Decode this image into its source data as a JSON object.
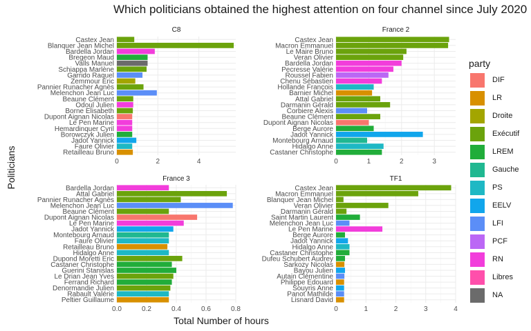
{
  "chart": {
    "title": "Which politicians obtained the highest attention on four channel since July 2020",
    "xlabel": "Total Number of hours",
    "ylabel": "Politicians"
  },
  "legend": {
    "title": "party",
    "items": [
      {
        "label": "DIF",
        "color": "#F8766D"
      },
      {
        "label": "LR",
        "color": "#D89000"
      },
      {
        "label": "Droite",
        "color": "#A3A500"
      },
      {
        "label": "Exécutif",
        "color": "#6BA30C"
      },
      {
        "label": "LREM",
        "color": "#21AD3A"
      },
      {
        "label": "Gauche",
        "color": "#20B891"
      },
      {
        "label": "PS",
        "color": "#1EB8C4"
      },
      {
        "label": "EELV",
        "color": "#11A6EC"
      },
      {
        "label": "LFI",
        "color": "#5B8EF7"
      },
      {
        "label": "PCF",
        "color": "#BB67F5"
      },
      {
        "label": "RN",
        "color": "#F23DDB"
      },
      {
        "label": "Libres",
        "color": "#FF4FAB"
      },
      {
        "label": "NA",
        "color": "#6B6B6B"
      }
    ]
  },
  "chart_data": [
    {
      "type": "bar",
      "orientation": "horizontal",
      "title": "C8",
      "xlim": [
        0,
        5.8
      ],
      "xticks": [
        0,
        2,
        4
      ],
      "bars": [
        {
          "name": "Castex Jean",
          "value": 0.85,
          "party": "Exécutif"
        },
        {
          "name": "Blanquer Jean Michel",
          "value": 5.7,
          "party": "Exécutif"
        },
        {
          "name": "Bardella Jordan",
          "value": 1.85,
          "party": "RN"
        },
        {
          "name": "Bregeon Maud",
          "value": 1.5,
          "party": "LREM"
        },
        {
          "name": "Valls Manuel",
          "value": 1.5,
          "party": "NA"
        },
        {
          "name": "Schiappa Marlène",
          "value": 1.45,
          "party": "Exécutif"
        },
        {
          "name": "Garrido Raquel",
          "value": 1.25,
          "party": "LFI"
        },
        {
          "name": "Zemmour Eric",
          "value": 0.9,
          "party": "Droite"
        },
        {
          "name": "Pannier Runacher Agnès",
          "value": 1.3,
          "party": "Exécutif"
        },
        {
          "name": "Melenchon Jean Luc",
          "value": 1.95,
          "party": "LFI"
        },
        {
          "name": "Beaune Clément",
          "value": 0.8,
          "party": "Exécutif"
        },
        {
          "name": "Odoul Julien",
          "value": 0.8,
          "party": "RN"
        },
        {
          "name": "Borne Elisabeth",
          "value": 0.78,
          "party": "Exécutif"
        },
        {
          "name": "Dupont Aignan Nicolas",
          "value": 0.75,
          "party": "DIF"
        },
        {
          "name": "Le Pen Marine",
          "value": 0.75,
          "party": "RN"
        },
        {
          "name": "Hemardinquer Cyril",
          "value": 0.75,
          "party": "RN"
        },
        {
          "name": "Borowczyk Julien",
          "value": 0.75,
          "party": "LREM"
        },
        {
          "name": "Jadot Yannick",
          "value": 0.95,
          "party": "EELV"
        },
        {
          "name": "Faure Olivier",
          "value": 0.75,
          "party": "PS"
        },
        {
          "name": "Retailleau Bruno",
          "value": 0.78,
          "party": "LR"
        }
      ]
    },
    {
      "type": "bar",
      "orientation": "horizontal",
      "title": "France 2",
      "xlim": [
        0,
        3.65
      ],
      "xticks": [
        0,
        1,
        2,
        3
      ],
      "bars": [
        {
          "name": "Castex Jean",
          "value": 3.45,
          "party": "Exécutif"
        },
        {
          "name": "Macron Emmanuel",
          "value": 3.42,
          "party": "Exécutif"
        },
        {
          "name": "Le Maire Bruno",
          "value": 2.15,
          "party": "Exécutif"
        },
        {
          "name": "Veran Olivier",
          "value": 2.05,
          "party": "Exécutif"
        },
        {
          "name": "Bardella Jordan",
          "value": 2.0,
          "party": "RN"
        },
        {
          "name": "Pecresse Valérie",
          "value": 1.75,
          "party": "RN"
        },
        {
          "name": "Roussel Fabien",
          "value": 1.6,
          "party": "PCF"
        },
        {
          "name": "Chenu Sébastien",
          "value": 1.4,
          "party": "RN"
        },
        {
          "name": "Hollande François",
          "value": 1.15,
          "party": "PS"
        },
        {
          "name": "Barnier Michel",
          "value": 1.1,
          "party": "LR"
        },
        {
          "name": "Attal Gabriel",
          "value": 1.35,
          "party": "Exécutif"
        },
        {
          "name": "Darmanin Gérald",
          "value": 1.65,
          "party": "Exécutif"
        },
        {
          "name": "Corbiere Alexis",
          "value": 0.95,
          "party": "LFI"
        },
        {
          "name": "Beaune Clément",
          "value": 1.35,
          "party": "Exécutif"
        },
        {
          "name": "Dupont Aignan Nicolas",
          "value": 1.0,
          "party": "DIF"
        },
        {
          "name": "Berge Aurore",
          "value": 1.15,
          "party": "LREM"
        },
        {
          "name": "Jadot Yannick",
          "value": 2.65,
          "party": "EELV"
        },
        {
          "name": "Montebourg Arnaud",
          "value": 0.95,
          "party": "Gauche"
        },
        {
          "name": "Hidalgo Anne",
          "value": 1.45,
          "party": "PS"
        },
        {
          "name": "Castaner Christophe",
          "value": 1.4,
          "party": "LREM"
        }
      ]
    },
    {
      "type": "bar",
      "orientation": "horizontal",
      "title": "France 3",
      "xlim": [
        0,
        0.8
      ],
      "xticks": [
        0.0,
        0.2,
        0.4,
        0.6,
        0.8
      ],
      "bars": [
        {
          "name": "Bardella Jordan",
          "value": 0.35,
          "party": "RN"
        },
        {
          "name": "Attal Gabriel",
          "value": 0.74,
          "party": "Exécutif"
        },
        {
          "name": "Pannier Runacher Agnès",
          "value": 0.43,
          "party": "Exécutif"
        },
        {
          "name": "Melenchon Jean Luc",
          "value": 0.78,
          "party": "LFI"
        },
        {
          "name": "Beaune Clément",
          "value": 0.35,
          "party": "Exécutif"
        },
        {
          "name": "Dupont Aignan Nicolas",
          "value": 0.54,
          "party": "DIF"
        },
        {
          "name": "Le Pen Marine",
          "value": 0.45,
          "party": "RN"
        },
        {
          "name": "Jadot Yannick",
          "value": 0.38,
          "party": "EELV"
        },
        {
          "name": "Montebourg Arnaud",
          "value": 0.35,
          "party": "Gauche"
        },
        {
          "name": "Faure Olivier",
          "value": 0.35,
          "party": "PS"
        },
        {
          "name": "Retailleau Bruno",
          "value": 0.34,
          "party": "LR"
        },
        {
          "name": "Hidalgo Anne",
          "value": 0.35,
          "party": "PS"
        },
        {
          "name": "Dupond Moretti Eric",
          "value": 0.44,
          "party": "Exécutif"
        },
        {
          "name": "Castaner Christophe",
          "value": 0.37,
          "party": "LREM"
        },
        {
          "name": "Guerini Stanislas",
          "value": 0.4,
          "party": "LREM"
        },
        {
          "name": "Le Drian Jean Yves",
          "value": 0.38,
          "party": "Exécutif"
        },
        {
          "name": "Ferrand Richard",
          "value": 0.37,
          "party": "LREM"
        },
        {
          "name": "Denormandie Julien",
          "value": 0.36,
          "party": "Exécutif"
        },
        {
          "name": "Rabault Valérie",
          "value": 0.35,
          "party": "PS"
        },
        {
          "name": "Peltier Guillaume",
          "value": 0.35,
          "party": "LR"
        }
      ]
    },
    {
      "type": "bar",
      "orientation": "horizontal",
      "title": "TF1",
      "xlim": [
        0,
        4.0
      ],
      "xticks": [
        0,
        1,
        2,
        3,
        4
      ],
      "bars": [
        {
          "name": "Castex Jean",
          "value": 3.85,
          "party": "Exécutif"
        },
        {
          "name": "Macron Emmanuel",
          "value": 2.75,
          "party": "Exécutif"
        },
        {
          "name": "Blanquer Jean Michel",
          "value": 0.25,
          "party": "Exécutif"
        },
        {
          "name": "Veran Olivier",
          "value": 1.75,
          "party": "Exécutif"
        },
        {
          "name": "Darmanin Gérald",
          "value": 0.35,
          "party": "Exécutif"
        },
        {
          "name": "Saint Martin Laurent",
          "value": 0.8,
          "party": "LREM"
        },
        {
          "name": "Melenchon Jean Luc",
          "value": 0.45,
          "party": "LFI"
        },
        {
          "name": "Le Pen Marine",
          "value": 1.55,
          "party": "RN"
        },
        {
          "name": "Berge Aurore",
          "value": 0.3,
          "party": "LREM"
        },
        {
          "name": "Jadot Yannick",
          "value": 0.4,
          "party": "EELV"
        },
        {
          "name": "Hidalgo Anne",
          "value": 0.45,
          "party": "PS"
        },
        {
          "name": "Castaner Christophe",
          "value": 0.45,
          "party": "LREM"
        },
        {
          "name": "Dufeu Schubert Audrey",
          "value": 0.3,
          "party": "LREM"
        },
        {
          "name": "Sarkozy Nicolas",
          "value": 0.28,
          "party": "LR"
        },
        {
          "name": "Bayou Julien",
          "value": 0.3,
          "party": "EELV"
        },
        {
          "name": "Autain Clémentine",
          "value": 0.28,
          "party": "LFI"
        },
        {
          "name": "Philippe Edouard",
          "value": 0.27,
          "party": "LR"
        },
        {
          "name": "Souyris Anne",
          "value": 0.27,
          "party": "EELV"
        },
        {
          "name": "Panot Mathilde",
          "value": 0.27,
          "party": "LFI"
        },
        {
          "name": "Lisnard David",
          "value": 0.27,
          "party": "LR"
        }
      ]
    }
  ]
}
